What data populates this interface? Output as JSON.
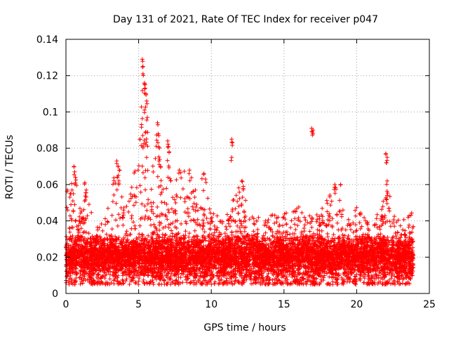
{
  "chart_data": {
    "type": "scatter",
    "title": "Day 131 of 2021, Rate Of TEC Index for receiver p047",
    "xlabel": "GPS time / hours",
    "ylabel": "ROTI / TECUs",
    "xlim": [
      0,
      25
    ],
    "ylim": [
      0,
      0.14
    ],
    "xticks": [
      0,
      5,
      10,
      15,
      20,
      25
    ],
    "yticks": [
      0,
      0.02,
      0.04,
      0.06,
      0.08,
      0.1,
      0.12,
      0.14
    ],
    "xtick_labels": [
      "0",
      "5",
      "10",
      "15",
      "20",
      "25"
    ],
    "ytick_labels": [
      "0",
      "0.02",
      "0.04",
      "0.06",
      "0.08",
      "0.1",
      "0.12",
      "0.14"
    ],
    "grid": true,
    "marker": "+",
    "color": "#ff0000",
    "seed": 131,
    "baseline_density_per_hour": 330,
    "baseline_range": [
      0.005,
      0.03
    ],
    "envelope": [
      {
        "x": 0.0,
        "y": 0.045
      },
      {
        "x": 0.3,
        "y": 0.057
      },
      {
        "x": 0.6,
        "y": 0.069
      },
      {
        "x": 1.0,
        "y": 0.048
      },
      {
        "x": 1.4,
        "y": 0.058
      },
      {
        "x": 2.0,
        "y": 0.035
      },
      {
        "x": 2.8,
        "y": 0.044
      },
      {
        "x": 3.0,
        "y": 0.054
      },
      {
        "x": 3.5,
        "y": 0.072
      },
      {
        "x": 4.0,
        "y": 0.05
      },
      {
        "x": 4.5,
        "y": 0.062
      },
      {
        "x": 5.0,
        "y": 0.075
      },
      {
        "x": 5.3,
        "y": 0.127
      },
      {
        "x": 5.5,
        "y": 0.111
      },
      {
        "x": 5.8,
        "y": 0.058
      },
      {
        "x": 6.3,
        "y": 0.094
      },
      {
        "x": 6.5,
        "y": 0.072
      },
      {
        "x": 7.0,
        "y": 0.083
      },
      {
        "x": 7.3,
        "y": 0.055
      },
      {
        "x": 7.8,
        "y": 0.068
      },
      {
        "x": 8.5,
        "y": 0.067
      },
      {
        "x": 9.0,
        "y": 0.058
      },
      {
        "x": 9.4,
        "y": 0.065
      },
      {
        "x": 10.0,
        "y": 0.045
      },
      {
        "x": 11.0,
        "y": 0.042
      },
      {
        "x": 11.4,
        "y": 0.055
      },
      {
        "x": 12.1,
        "y": 0.062
      },
      {
        "x": 13.0,
        "y": 0.042
      },
      {
        "x": 14.0,
        "y": 0.043
      },
      {
        "x": 15.0,
        "y": 0.045
      },
      {
        "x": 16.0,
        "y": 0.048
      },
      {
        "x": 17.0,
        "y": 0.042
      },
      {
        "x": 17.8,
        "y": 0.05
      },
      {
        "x": 18.5,
        "y": 0.06
      },
      {
        "x": 19.3,
        "y": 0.04
      },
      {
        "x": 20.0,
        "y": 0.048
      },
      {
        "x": 21.0,
        "y": 0.038
      },
      {
        "x": 21.8,
        "y": 0.05
      },
      {
        "x": 22.2,
        "y": 0.062
      },
      {
        "x": 23.0,
        "y": 0.04
      },
      {
        "x": 23.9,
        "y": 0.045
      }
    ],
    "outliers": [
      {
        "x": 0.1,
        "y": 0.057
      },
      {
        "x": 0.3,
        "y": 0.055
      },
      {
        "x": 0.55,
        "y": 0.07
      },
      {
        "x": 0.6,
        "y": 0.067
      },
      {
        "x": 0.65,
        "y": 0.064
      },
      {
        "x": 1.3,
        "y": 0.061
      },
      {
        "x": 1.4,
        "y": 0.057
      },
      {
        "x": 3.5,
        "y": 0.073
      },
      {
        "x": 3.6,
        "y": 0.07
      },
      {
        "x": 3.7,
        "y": 0.068
      },
      {
        "x": 5.25,
        "y": 0.129
      },
      {
        "x": 5.3,
        "y": 0.125
      },
      {
        "x": 5.3,
        "y": 0.121
      },
      {
        "x": 5.4,
        "y": 0.116
      },
      {
        "x": 5.45,
        "y": 0.113
      },
      {
        "x": 5.5,
        "y": 0.11
      },
      {
        "x": 5.55,
        "y": 0.106
      },
      {
        "x": 5.4,
        "y": 0.101
      },
      {
        "x": 5.6,
        "y": 0.097
      },
      {
        "x": 5.2,
        "y": 0.093
      },
      {
        "x": 5.5,
        "y": 0.089
      },
      {
        "x": 5.1,
        "y": 0.085
      },
      {
        "x": 5.3,
        "y": 0.081
      },
      {
        "x": 6.3,
        "y": 0.094
      },
      {
        "x": 6.35,
        "y": 0.088
      },
      {
        "x": 6.4,
        "y": 0.073
      },
      {
        "x": 6.5,
        "y": 0.07
      },
      {
        "x": 7.0,
        "y": 0.084
      },
      {
        "x": 7.05,
        "y": 0.081
      },
      {
        "x": 7.1,
        "y": 0.078
      },
      {
        "x": 7.8,
        "y": 0.068
      },
      {
        "x": 8.5,
        "y": 0.068
      },
      {
        "x": 9.5,
        "y": 0.066
      },
      {
        "x": 9.6,
        "y": 0.063
      },
      {
        "x": 11.4,
        "y": 0.085
      },
      {
        "x": 11.45,
        "y": 0.083
      },
      {
        "x": 11.4,
        "y": 0.075
      },
      {
        "x": 12.1,
        "y": 0.062
      },
      {
        "x": 12.2,
        "y": 0.059
      },
      {
        "x": 16.9,
        "y": 0.091
      },
      {
        "x": 17.0,
        "y": 0.09
      },
      {
        "x": 16.95,
        "y": 0.089
      },
      {
        "x": 22.0,
        "y": 0.077
      },
      {
        "x": 22.1,
        "y": 0.075
      },
      {
        "x": 22.05,
        "y": 0.072
      },
      {
        "x": 22.1,
        "y": 0.062
      },
      {
        "x": 18.5,
        "y": 0.06
      },
      {
        "x": 18.9,
        "y": 0.06
      }
    ]
  }
}
